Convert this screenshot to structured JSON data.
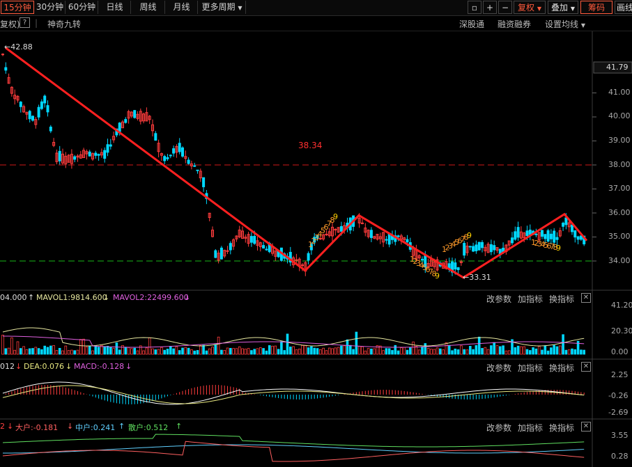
{
  "toolbar": {
    "periods": [
      "15分钟",
      "30分钟",
      "60分钟",
      "日线",
      "周线",
      "月线",
      "更多周期"
    ],
    "lock": "🔒",
    "plus": "+",
    "minus": "−",
    "fuquan": "复权",
    "diejia": "叠加",
    "chouma": "筹码",
    "huamian": "画线"
  },
  "subbar": {
    "fq_label": "复权)",
    "help": "?",
    "indicator": "神奇九转",
    "links": [
      "深股通",
      "融资融券",
      "设置均线"
    ]
  },
  "price_axis": {
    "ticks": [
      "41.00",
      "40.00",
      "39.00",
      "38.00",
      "37.00",
      "36.00",
      "35.00",
      "34.00"
    ],
    "current": "41.79"
  },
  "annotations": {
    "high": "42.88",
    "low": "33.31",
    "level": "38.34"
  },
  "volume_pane": {
    "label0": "04.000",
    "arrow0": "↑",
    "mavol1": "MAVOL1:9814.600",
    "arrow1": "↓",
    "mavol2": "MAVOL2:22499.600",
    "arrow2": "↓",
    "ticks": [
      "41.20",
      "20.30",
      "0.00"
    ]
  },
  "macd_pane": {
    "label0": "012",
    "arrow0": "↓",
    "dea": "DEA:0.076",
    "arrow1": "↓",
    "macd": "MACD:-0.128",
    "arrow2": "↓",
    "ticks": [
      "2.25",
      "-0.26",
      "-2.69"
    ]
  },
  "fund_pane": {
    "label0": "2",
    "arrow0": "↓",
    "dahu": "大户:-0.181",
    "arrow1": "↓",
    "zhonghu": "中户:0.241",
    "arrow2": "↑",
    "sanhu": "散户:0.512",
    "arrow3": "↑",
    "ticks": [
      "3.55",
      "0.28"
    ]
  },
  "pane_buttons": [
    "改参数",
    "加指标",
    "换指标"
  ],
  "close_mark": "✕",
  "colors": {
    "up": "#ff3c3c",
    "down": "#00d8ff",
    "trend": "#ff2020",
    "dash_red": "#d01818",
    "dash_green": "#18b818",
    "mavol1": "#e8e8a0",
    "mavol2": "#e060e0",
    "dea": "#e8e880",
    "macd": "#ffffff",
    "dahu": "#ff6060",
    "zhonghu": "#60d0ff",
    "sanhu": "#60e060",
    "nine": "#ff9a2a"
  },
  "chart_data": {
    "type": "candlestick",
    "price_high": 42.88,
    "price_low": 33.31,
    "reference_lines": [
      38.0,
      34.0
    ],
    "zigzag": [
      42.88,
      33.6,
      35.9,
      33.31,
      35.95,
      34.9
    ],
    "nine_turn_labels": [
      "1",
      "2",
      "3",
      "4",
      "5",
      "6",
      "7",
      "8",
      "9"
    ]
  }
}
